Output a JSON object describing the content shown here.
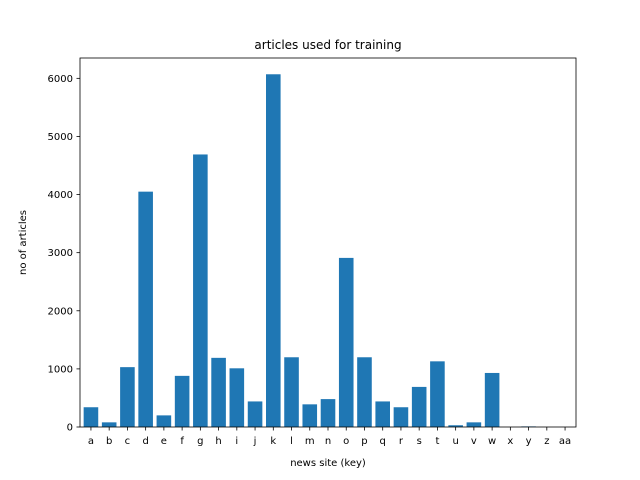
{
  "chart_data": {
    "type": "bar",
    "title": "articles used for training",
    "xlabel": "news site (key)",
    "ylabel": "no of articles",
    "categories": [
      "a",
      "b",
      "c",
      "d",
      "e",
      "f",
      "g",
      "h",
      "i",
      "j",
      "k",
      "l",
      "m",
      "n",
      "o",
      "p",
      "q",
      "r",
      "s",
      "t",
      "u",
      "v",
      "w",
      "x",
      "y",
      "z",
      "aa"
    ],
    "values": [
      340,
      80,
      1030,
      4050,
      200,
      880,
      4690,
      1190,
      1010,
      440,
      6070,
      1200,
      390,
      480,
      2910,
      1200,
      440,
      340,
      690,
      1130,
      30,
      80,
      930,
      0,
      10,
      0,
      0
    ],
    "ylim": [
      0,
      6350
    ],
    "yticks": [
      0,
      1000,
      2000,
      3000,
      4000,
      5000,
      6000
    ],
    "grid": false,
    "legend": "none",
    "bar_color": "#1f77b4"
  }
}
